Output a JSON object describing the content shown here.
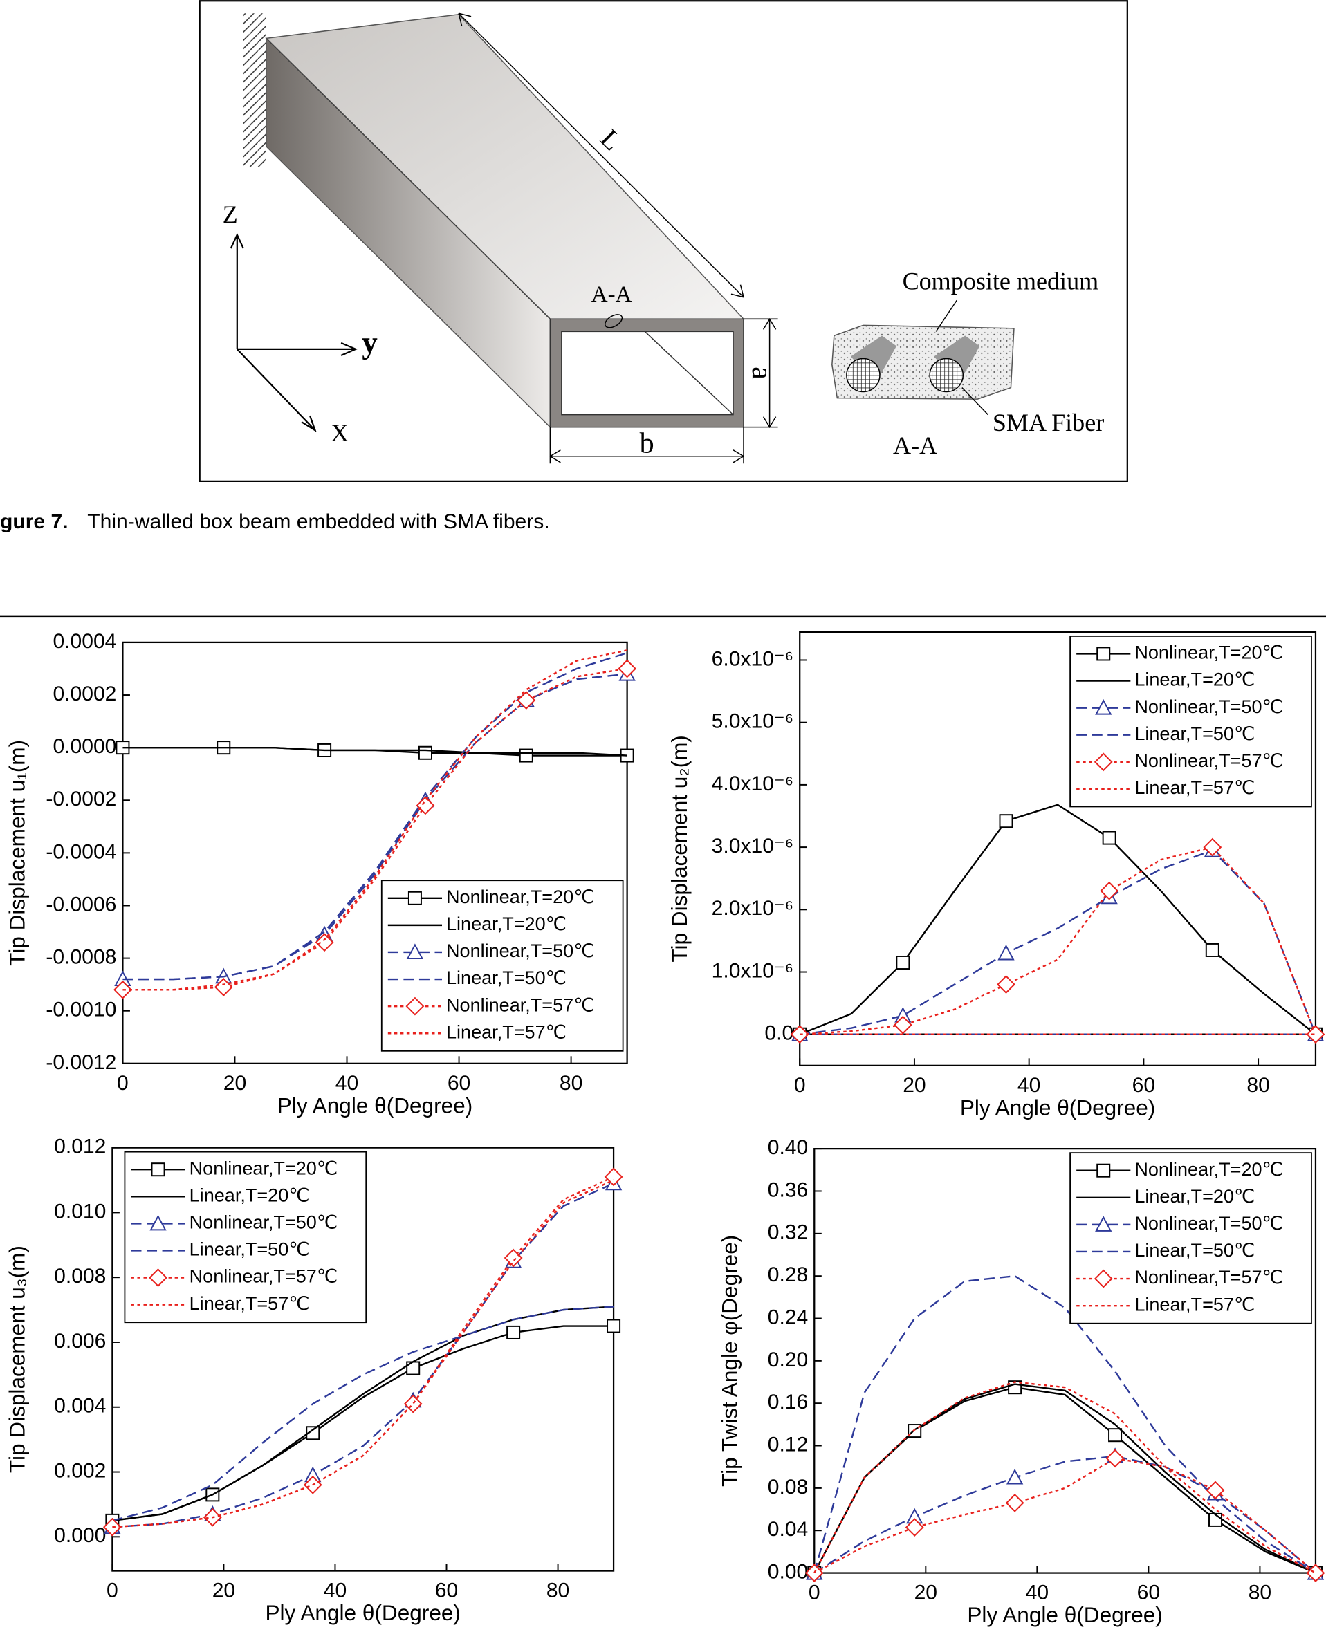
{
  "diagram": {
    "z_axis": "Z",
    "y_axis": "y",
    "x_axis": "X",
    "length": "L",
    "section_mark": "A-A",
    "height": "a",
    "width": "b",
    "medium": "Composite medium",
    "fiber": "SMA Fiber",
    "section_label": "A-A"
  },
  "caption": {
    "label": "gure 7.",
    "text": "Thin-walled box beam embedded with SMA fibers."
  },
  "chart_data": [
    {
      "type": "line",
      "x_label": "Ply Angle θ(Degree)",
      "y_label": "Tip Displacement u₁(m)",
      "legend": "lower right",
      "x": [
        0,
        9,
        18,
        27,
        36,
        45,
        54,
        63,
        72,
        81,
        90
      ],
      "xlim": [
        0,
        90
      ],
      "xticks": [
        0,
        20,
        40,
        60,
        80
      ],
      "ylim": [
        -0.0012,
        0.0004
      ],
      "yticks": [
        -0.0012,
        {
          "value": -0.001,
          "label": "-0.0010"
        },
        -0.0008,
        -0.0006,
        -0.0004,
        -0.0002,
        {
          "value": 0,
          "label": "0.0000"
        },
        0.0002,
        0.0004
      ],
      "series": [
        {
          "name": "Nonlinear,T=20℃",
          "color": "#000000",
          "dash": "solid",
          "marker": "square",
          "values": [
            0,
            0,
            0,
            0,
            -1e-05,
            -1e-05,
            -2e-05,
            -2e-05,
            -3e-05,
            -3e-05,
            -3e-05
          ]
        },
        {
          "name": "Linear,T=20℃",
          "color": "#000000",
          "dash": "solid",
          "marker": null,
          "values": [
            0,
            0,
            0,
            0,
            -1e-05,
            -1e-05,
            -1e-05,
            -2e-05,
            -2e-05,
            -2e-05,
            -3e-05
          ]
        },
        {
          "name": "Nonlinear,T=50℃",
          "color": "#2e3a9a",
          "dash": "dashed",
          "marker": "triangle",
          "values": [
            -0.00088,
            -0.00088,
            -0.00087,
            -0.00083,
            -0.00071,
            -0.00048,
            -0.0002,
            2e-05,
            0.00018,
            0.00026,
            0.00028
          ]
        },
        {
          "name": "Linear,T=50℃",
          "color": "#2e3a9a",
          "dash": "dashed",
          "marker": null,
          "values": [
            -0.00088,
            -0.00088,
            -0.00087,
            -0.00083,
            -0.0007,
            -0.00047,
            -0.00019,
            4e-05,
            0.00021,
            0.0003,
            0.00036
          ]
        },
        {
          "name": "Nonlinear,T=57℃",
          "color": "#e8201c",
          "dash": "dotted",
          "marker": "diamond",
          "values": [
            -0.00092,
            -0.00092,
            -0.00091,
            -0.00086,
            -0.00074,
            -0.0005,
            -0.00022,
            2e-05,
            0.00018,
            0.00027,
            0.0003
          ]
        },
        {
          "name": "Linear,T=57℃",
          "color": "#e8201c",
          "dash": "dotted",
          "marker": null,
          "values": [
            -0.00092,
            -0.00092,
            -0.0009,
            -0.00086,
            -0.00073,
            -0.00049,
            -0.0002,
            4e-05,
            0.00022,
            0.00033,
            0.00037
          ]
        }
      ]
    },
    {
      "type": "line",
      "x_label": "Ply Angle θ(Degree)",
      "y_label": "Tip Displacement u₂(m)",
      "legend": "upper right",
      "x": [
        0,
        9,
        18,
        27,
        36,
        45,
        54,
        63,
        72,
        81,
        90
      ],
      "xlim": [
        0,
        90
      ],
      "xticks": [
        0,
        20,
        40,
        60,
        80
      ],
      "ylim": [
        -5e-07,
        6.45e-06
      ],
      "yticks": [
        {
          "value": 0,
          "label": "0.0"
        },
        {
          "value": 1e-06,
          "label": "1.0x10⁻⁶"
        },
        {
          "value": 2e-06,
          "label": "2.0x10⁻⁶"
        },
        {
          "value": 3e-06,
          "label": "3.0x10⁻⁶"
        },
        {
          "value": 4e-06,
          "label": "4.0x10⁻⁶"
        },
        {
          "value": 5e-06,
          "label": "5.0x10⁻⁶"
        },
        {
          "value": 6e-06,
          "label": "6.0x10⁻⁶"
        }
      ],
      "series": [
        {
          "name": "Nonlinear,T=20℃",
          "color": "#000000",
          "dash": "solid",
          "marker": "square",
          "values": [
            0,
            3.3e-07,
            1.15e-06,
            2.3e-06,
            3.42e-06,
            3.68e-06,
            3.15e-06,
            2.3e-06,
            1.35e-06,
            6.5e-07,
            0
          ]
        },
        {
          "name": "Linear,T=20℃",
          "color": "#000000",
          "dash": "solid",
          "marker": null,
          "values": [
            0,
            0,
            0,
            0,
            0,
            0,
            0,
            0,
            0,
            0,
            0
          ]
        },
        {
          "name": "Nonlinear,T=50℃",
          "color": "#2e3a9a",
          "dash": "dashed",
          "marker": "triangle",
          "values": [
            0,
            1e-07,
            3e-07,
            8e-07,
            1.3e-06,
            1.7e-06,
            2.2e-06,
            2.65e-06,
            2.95e-06,
            2.1e-06,
            0
          ]
        },
        {
          "name": "Linear,T=50℃",
          "color": "#2e3a9a",
          "dash": "dashed",
          "marker": null,
          "values": [
            0,
            0,
            0,
            0,
            0,
            0,
            0,
            0,
            0,
            0,
            0
          ]
        },
        {
          "name": "Nonlinear,T=57℃",
          "color": "#e8201c",
          "dash": "dotted",
          "marker": "diamond",
          "values": [
            0,
            5e-08,
            1.5e-07,
            4e-07,
            8e-07,
            1.2e-06,
            2.3e-06,
            2.8e-06,
            3e-06,
            2.1e-06,
            0
          ]
        },
        {
          "name": "Linear,T=57℃",
          "color": "#e8201c",
          "dash": "dotted",
          "marker": null,
          "values": [
            0,
            0,
            0,
            0,
            0,
            0,
            0,
            0,
            0,
            0,
            0
          ]
        }
      ]
    },
    {
      "type": "line",
      "x_label": "Ply Angle θ(Degree)",
      "y_label": "Tip Displacement u₃(m)",
      "legend": "upper left",
      "x": [
        0,
        9,
        18,
        27,
        36,
        45,
        54,
        63,
        72,
        81,
        90
      ],
      "xlim": [
        0,
        90
      ],
      "xticks": [
        0,
        20,
        40,
        60,
        80
      ],
      "ylim": [
        -0.00105,
        0.012
      ],
      "yticks": [
        {
          "value": 0,
          "label": "0.000"
        },
        0.002,
        0.004,
        0.006,
        0.008,
        {
          "value": 0.01,
          "label": "0.010"
        },
        0.012
      ],
      "series": [
        {
          "name": "Nonlinear,T=20℃",
          "color": "#000000",
          "dash": "solid",
          "marker": "square",
          "values": [
            0.0005,
            0.0007,
            0.0013,
            0.0022,
            0.0032,
            0.0043,
            0.0052,
            0.0058,
            0.0063,
            0.0065,
            0.0065
          ]
        },
        {
          "name": "Linear,T=20℃",
          "color": "#000000",
          "dash": "solid",
          "marker": null,
          "values": [
            0.0005,
            0.0007,
            0.0013,
            0.0022,
            0.0033,
            0.0044,
            0.0054,
            0.0062,
            0.0067,
            0.007,
            0.0071
          ]
        },
        {
          "name": "Nonlinear,T=50℃",
          "color": "#2e3a9a",
          "dash": "dashed",
          "marker": "triangle",
          "values": [
            0.0003,
            0.0004,
            0.0007,
            0.0012,
            0.0019,
            0.0028,
            0.0042,
            0.0063,
            0.0085,
            0.0102,
            0.0109
          ]
        },
        {
          "name": "Linear,T=50℃",
          "color": "#2e3a9a",
          "dash": "dashed",
          "marker": null,
          "values": [
            0.0005,
            0.0009,
            0.0016,
            0.0029,
            0.0041,
            0.005,
            0.0057,
            0.0062,
            0.0067,
            0.007,
            0.0071
          ]
        },
        {
          "name": "Nonlinear,T=57℃",
          "color": "#e8201c",
          "dash": "dotted",
          "marker": "diamond",
          "values": [
            0.0003,
            0.0004,
            0.0006,
            0.001,
            0.0016,
            0.0025,
            0.0041,
            0.0064,
            0.0086,
            0.0104,
            0.0111
          ]
        },
        {
          "name": "Linear,T=57℃",
          "color": "#e8201c",
          "dash": "dotted",
          "marker": null,
          "values": [
            0.0003,
            0.0004,
            0.0006,
            0.001,
            0.0016,
            0.0025,
            0.0041,
            0.0063,
            0.0085,
            0.0103,
            0.011
          ]
        }
      ]
    },
    {
      "type": "line",
      "x_label": "Ply Angle θ(Degree)",
      "y_label": "Tip Twist Angle φ(Degree)",
      "legend": "upper right",
      "x": [
        0,
        9,
        18,
        27,
        36,
        45,
        54,
        63,
        72,
        81,
        90
      ],
      "xlim": [
        0,
        90
      ],
      "xticks": [
        0,
        20,
        40,
        60,
        80
      ],
      "ylim": [
        0,
        0.4
      ],
      "yticks": [
        {
          "value": 0,
          "label": "0.00"
        },
        0.04,
        0.08,
        0.12,
        0.16,
        {
          "value": 0.2,
          "label": "0.20"
        },
        0.24,
        0.28,
        0.32,
        0.36,
        {
          "value": 0.4,
          "label": "0.40"
        }
      ],
      "series": [
        {
          "name": "Nonlinear,T=20℃",
          "color": "#000000",
          "dash": "solid",
          "marker": "square",
          "values": [
            0,
            0.09,
            0.134,
            0.162,
            0.175,
            0.168,
            0.13,
            0.09,
            0.05,
            0.02,
            0
          ]
        },
        {
          "name": "Linear,T=20℃",
          "color": "#000000",
          "dash": "solid",
          "marker": null,
          "values": [
            0,
            0.09,
            0.135,
            0.164,
            0.178,
            0.172,
            0.14,
            0.095,
            0.055,
            0.022,
            0
          ]
        },
        {
          "name": "Nonlinear,T=50℃",
          "color": "#2e3a9a",
          "dash": "dashed",
          "marker": "triangle",
          "values": [
            0,
            0.03,
            0.053,
            0.073,
            0.09,
            0.105,
            0.11,
            0.1,
            0.075,
            0.04,
            0
          ]
        },
        {
          "name": "Linear,T=50℃",
          "color": "#2e3a9a",
          "dash": "dashed",
          "marker": null,
          "values": [
            0,
            0.17,
            0.24,
            0.275,
            0.28,
            0.25,
            0.19,
            0.12,
            0.07,
            0.03,
            0
          ]
        },
        {
          "name": "Nonlinear,T=57℃",
          "color": "#e8201c",
          "dash": "dotted",
          "marker": "diamond",
          "values": [
            0,
            0.025,
            0.043,
            0.055,
            0.066,
            0.08,
            0.108,
            0.1,
            0.078,
            0.04,
            0
          ]
        },
        {
          "name": "Linear,T=57℃",
          "color": "#e8201c",
          "dash": "dotted",
          "marker": null,
          "values": [
            0,
            0.09,
            0.135,
            0.165,
            0.18,
            0.175,
            0.15,
            0.1,
            0.06,
            0.025,
            0
          ]
        }
      ]
    }
  ]
}
